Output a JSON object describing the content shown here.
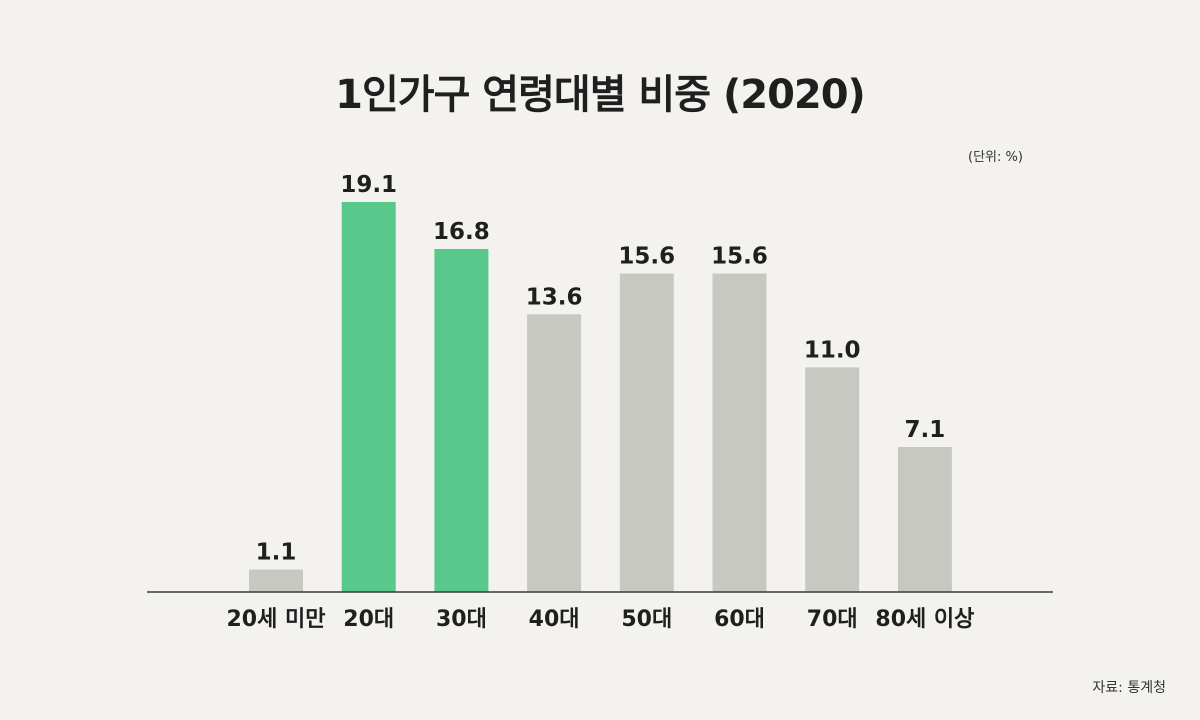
{
  "title": "1인가구 연령대별 비중 (2020)",
  "unit_note": "(단위: %)",
  "source_note": "자료: 통계청",
  "colors": {
    "background": "#f3f2ee",
    "highlight": "#58c98b",
    "default": "#c8c8c3",
    "axis": "#3a3a3a"
  },
  "chart_data": {
    "type": "bar",
    "title": "1인가구 연령대별 비중 (2020)",
    "xlabel": "",
    "ylabel": "",
    "ylim": [
      0,
      20
    ],
    "grid": false,
    "categories": [
      "20세 미만",
      "20대",
      "30대",
      "40대",
      "50대",
      "60대",
      "70대",
      "80세 이상"
    ],
    "values": [
      1.1,
      19.1,
      16.8,
      13.6,
      15.6,
      15.6,
      11.0,
      7.1
    ],
    "value_labels": [
      "1.1",
      "19.1",
      "16.8",
      "13.6",
      "15.6",
      "15.6",
      "11.0",
      "7.1"
    ],
    "highlighted": [
      false,
      true,
      true,
      false,
      false,
      false,
      false,
      false
    ]
  }
}
